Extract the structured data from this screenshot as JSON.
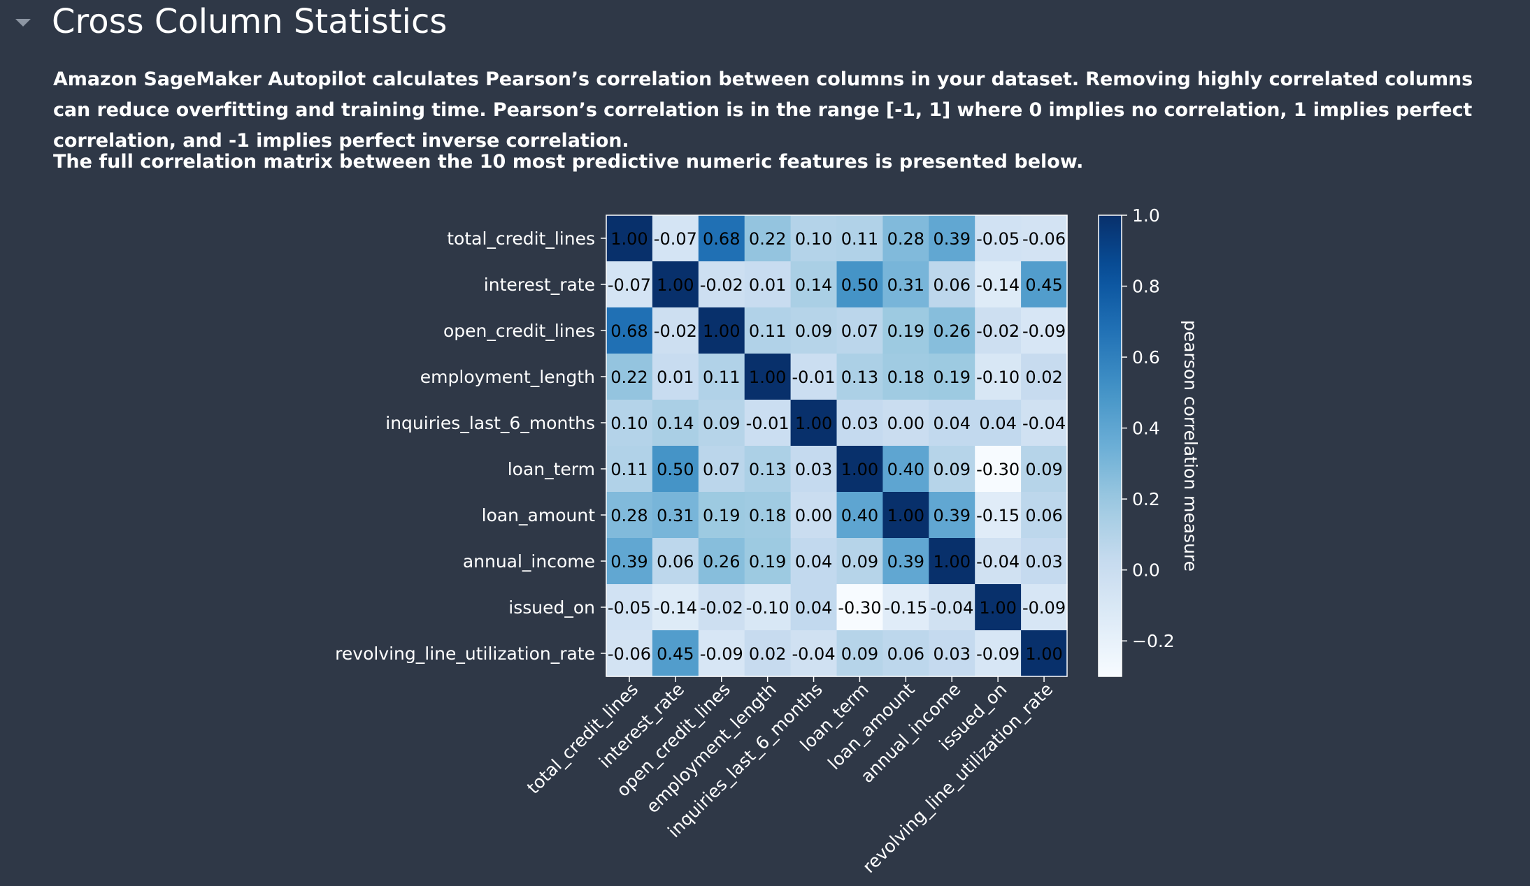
{
  "section": {
    "title": "Cross Column Statistics",
    "description": "Amazon SageMaker Autopilot calculates Pearson’s correlation between columns in your dataset. Removing highly correlated columns can reduce overfitting and training time. Pearson’s correlation is in the range [-1, 1] where 0 implies no correlation, 1 implies perfect correlation, and -1 implies perfect inverse correlation.",
    "subdescription": "The full correlation matrix between the 10 most predictive numeric features is presented below."
  },
  "chart_data": {
    "type": "heatmap",
    "title": "",
    "labels": [
      "total_credit_lines",
      "interest_rate",
      "open_credit_lines",
      "employment_length",
      "inquiries_last_6_months",
      "loan_term",
      "loan_amount",
      "annual_income",
      "issued_on",
      "revolving_line_utilization_rate"
    ],
    "matrix": [
      [
        1.0,
        -0.07,
        0.68,
        0.22,
        0.1,
        0.11,
        0.28,
        0.39,
        -0.05,
        -0.06
      ],
      [
        -0.07,
        1.0,
        -0.02,
        0.01,
        0.14,
        0.5,
        0.31,
        0.06,
        -0.14,
        0.45
      ],
      [
        0.68,
        -0.02,
        1.0,
        0.11,
        0.09,
        0.07,
        0.19,
        0.26,
        -0.02,
        -0.09
      ],
      [
        0.22,
        0.01,
        0.11,
        1.0,
        -0.01,
        0.13,
        0.18,
        0.19,
        -0.1,
        0.02
      ],
      [
        0.1,
        0.14,
        0.09,
        -0.01,
        1.0,
        0.03,
        0.0,
        0.04,
        0.04,
        -0.04
      ],
      [
        0.11,
        0.5,
        0.07,
        0.13,
        0.03,
        1.0,
        0.4,
        0.09,
        -0.3,
        0.09
      ],
      [
        0.28,
        0.31,
        0.19,
        0.18,
        0.0,
        0.4,
        1.0,
        0.39,
        -0.15,
        0.06
      ],
      [
        0.39,
        0.06,
        0.26,
        0.19,
        0.04,
        0.09,
        0.39,
        1.0,
        -0.04,
        0.03
      ],
      [
        -0.05,
        -0.14,
        -0.02,
        -0.1,
        0.04,
        -0.3,
        -0.15,
        -0.04,
        1.0,
        -0.09
      ],
      [
        -0.06,
        0.45,
        -0.09,
        0.02,
        -0.04,
        0.09,
        0.06,
        0.03,
        -0.09,
        1.0
      ]
    ],
    "colorbar": {
      "label": "pearson correlation measure",
      "range": [
        -0.3,
        1.0
      ],
      "ticks": [
        1.0,
        0.8,
        0.6,
        0.4,
        0.2,
        0.0,
        -0.2
      ],
      "tick_labels": [
        "1.0",
        "0.8",
        "0.6",
        "0.4",
        "0.2",
        "0.0",
        "−0.2"
      ],
      "colormap": "Blues"
    },
    "legend": "colorbar-right",
    "grid": false
  }
}
